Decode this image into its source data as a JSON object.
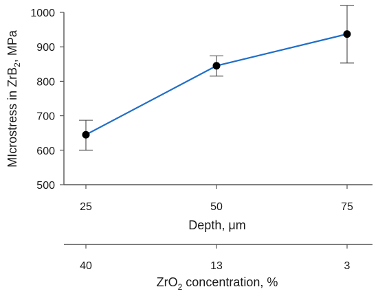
{
  "chart_data": {
    "type": "line",
    "x": [
      25,
      50,
      75
    ],
    "x_tick_labels": [
      "25",
      "50",
      "75"
    ],
    "secondary_x_tick_labels": [
      "40",
      "13",
      "3"
    ],
    "series": [
      {
        "values": [
          645,
          845,
          937
        ],
        "error_low": [
          600,
          815,
          853
        ],
        "error_high": [
          687,
          874,
          1020
        ],
        "color": "#1f6fc8",
        "marker_color": "#000000"
      }
    ],
    "ylim": [
      500,
      1000
    ],
    "y_ticks": [
      500,
      600,
      700,
      800,
      900,
      1000
    ],
    "ylabel": {
      "main": "MIcrostress in ZrB",
      "sub": "2",
      "rest": ", MPa"
    },
    "xlabel": "Depth, μm",
    "secondary_xlabel": {
      "main": "ZrO",
      "sub": "2",
      "rest": " concentration, %"
    },
    "grid": false
  }
}
